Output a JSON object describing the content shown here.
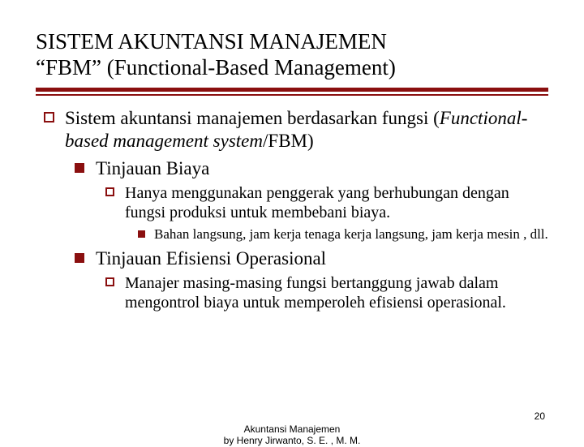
{
  "colors": {
    "accent": "#8a0f0f",
    "text": "#000000",
    "background": "#ffffff"
  },
  "title_line1": "SISTEM AKUNTANSI MANAJEMEN",
  "title_line2": "“FBM” (Functional-Based Management)",
  "b1_pre": "Sistem akuntansi manajemen berdasarkan fungsi (",
  "b1_italic": "Functional-based management system",
  "b1_post": "/FBM)",
  "b1a": "Tinjauan Biaya",
  "b1a_i": "Hanya menggunakan penggerak yang berhubungan dengan fungsi produksi untuk membebani biaya.",
  "b1a_i_1": "Bahan langsung, jam kerja tenaga kerja langsung, jam kerja mesin , dll.",
  "b1b": "Tinjauan Efisiensi Operasional",
  "b1b_i": "Manajer masing-masing fungsi bertanggung jawab dalam mengontrol biaya untuk memperoleh efisiensi operasional.",
  "footer_line1": "Akuntansi Manajemen",
  "footer_line2": "by Henry Jirwanto, S. E. , M. M.",
  "page_number": "20"
}
